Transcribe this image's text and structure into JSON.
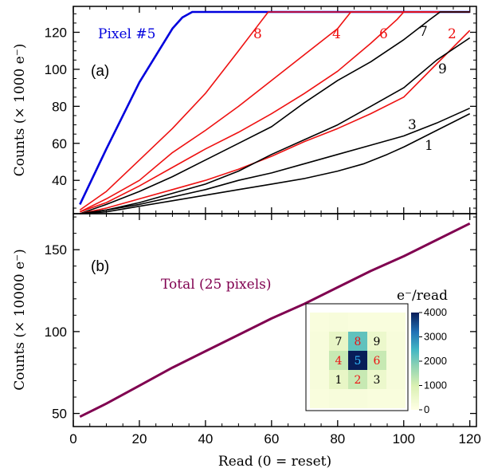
{
  "chart_data": [
    {
      "type": "line",
      "panel_label": "(a)",
      "ylabel": "Counts (× 1000 e⁻)",
      "xlim": [
        0,
        122
      ],
      "ylim": [
        22,
        134
      ],
      "yticks": [
        40,
        60,
        80,
        100,
        120
      ],
      "ytick_labels": [
        "40",
        "60",
        "80",
        "100",
        "120"
      ],
      "grid": false,
      "series": [
        {
          "name": "Pixel #5",
          "color": "#0000dd",
          "x": [
            2,
            10,
            20,
            30,
            33,
            36,
            40,
            120
          ],
          "y": [
            27,
            57,
            93,
            122,
            128,
            131,
            131,
            131
          ]
        },
        {
          "name": "8",
          "color": "#ee1111",
          "x": [
            2,
            10,
            20,
            30,
            40,
            50,
            56,
            59,
            120
          ],
          "y": [
            24,
            34,
            51,
            68,
            87,
            110,
            124,
            131,
            131
          ]
        },
        {
          "name": "4",
          "color": "#ee1111",
          "x": [
            2,
            10,
            20,
            30,
            40,
            50,
            60,
            70,
            80,
            84,
            120
          ],
          "y": [
            23,
            30,
            40,
            55,
            67,
            80,
            94,
            108,
            122,
            131,
            131
          ]
        },
        {
          "name": "6",
          "color": "#ee1111",
          "x": [
            2,
            10,
            20,
            30,
            40,
            50,
            60,
            70,
            80,
            90,
            98,
            100,
            120
          ],
          "y": [
            23,
            28,
            37,
            47,
            57,
            66,
            76,
            87,
            99,
            114,
            127,
            131,
            131
          ]
        },
        {
          "name": "7",
          "color": "#000000",
          "x": [
            2,
            10,
            20,
            30,
            40,
            50,
            60,
            70,
            80,
            90,
            100,
            108,
            111,
            120
          ],
          "y": [
            22,
            27,
            34,
            42,
            51,
            60,
            69,
            82,
            94,
            104,
            116,
            127,
            131,
            131
          ]
        },
        {
          "name": "2",
          "color": "#ee1111",
          "x": [
            2,
            10,
            20,
            30,
            40,
            50,
            60,
            70,
            80,
            90,
            100,
            110,
            120
          ],
          "y": [
            22,
            25,
            30,
            35,
            40,
            46,
            53,
            61,
            68,
            76,
            85,
            103,
            121
          ]
        },
        {
          "name": "9",
          "color": "#000000",
          "x": [
            2,
            10,
            20,
            30,
            40,
            50,
            60,
            70,
            80,
            90,
            100,
            110,
            120
          ],
          "y": [
            22,
            24,
            28,
            33,
            38,
            45,
            54,
            62,
            70,
            80,
            90,
            105,
            117
          ]
        },
        {
          "name": "3",
          "color": "#000000",
          "x": [
            2,
            10,
            20,
            30,
            40,
            50,
            60,
            70,
            80,
            90,
            100,
            110,
            120
          ],
          "y": [
            22,
            24,
            27,
            31,
            35,
            40,
            44,
            49,
            54,
            59,
            64,
            71,
            79
          ]
        },
        {
          "name": "1",
          "color": "#000000",
          "x": [
            2,
            10,
            20,
            30,
            40,
            50,
            60,
            70,
            80,
            88,
            95,
            100,
            110,
            120
          ],
          "y": [
            22,
            23,
            26,
            29,
            32,
            35,
            38,
            41,
            45,
            49,
            54,
            58,
            67,
            76
          ]
        }
      ]
    },
    {
      "type": "line",
      "panel_label": "(b)",
      "xlabel": "Read (0 = reset)",
      "ylabel": "Counts (× 10000 e⁻)",
      "xlim": [
        0,
        122
      ],
      "ylim": [
        42,
        172
      ],
      "xticks": [
        0,
        20,
        40,
        60,
        80,
        100,
        120
      ],
      "xtick_labels": [
        "0",
        "20",
        "40",
        "60",
        "80",
        "100",
        "120"
      ],
      "yticks": [
        50,
        100,
        150
      ],
      "ytick_labels": [
        "50",
        "100",
        "150"
      ],
      "grid": false,
      "series": [
        {
          "name": "Total (25 pixels)",
          "color": "#800050",
          "x": [
            2,
            10,
            20,
            30,
            40,
            50,
            60,
            70,
            80,
            90,
            100,
            110,
            120
          ],
          "y": [
            48,
            56,
            67,
            78,
            88,
            98,
            108,
            117,
            127,
            137,
            146,
            156,
            166
          ]
        }
      ]
    }
  ],
  "inset": {
    "colorbar_title": "e⁻/read",
    "colorbar_ticks": [
      "4000",
      "3000",
      "2000",
      "1000",
      "0"
    ],
    "colorbar_range": [
      0,
      4000
    ],
    "grid_numbers": [
      {
        "label": "7",
        "color": "#000000"
      },
      {
        "label": "8",
        "color": "#ee1111"
      },
      {
        "label": "9",
        "color": "#000000"
      },
      {
        "label": "4",
        "color": "#ee1111"
      },
      {
        "label": "5",
        "color": "#33bbff"
      },
      {
        "label": "6",
        "color": "#ee1111"
      },
      {
        "label": "1",
        "color": "#000000"
      },
      {
        "label": "2",
        "color": "#ee1111"
      },
      {
        "label": "3",
        "color": "#000000"
      }
    ],
    "heatmap_values": [
      [
        150,
        200,
        150,
        150,
        150
      ],
      [
        200,
        600,
        2200,
        500,
        200
      ],
      [
        200,
        1200,
        4000,
        1200,
        200
      ],
      [
        200,
        600,
        1200,
        500,
        200
      ],
      [
        150,
        200,
        200,
        150,
        150
      ]
    ]
  }
}
